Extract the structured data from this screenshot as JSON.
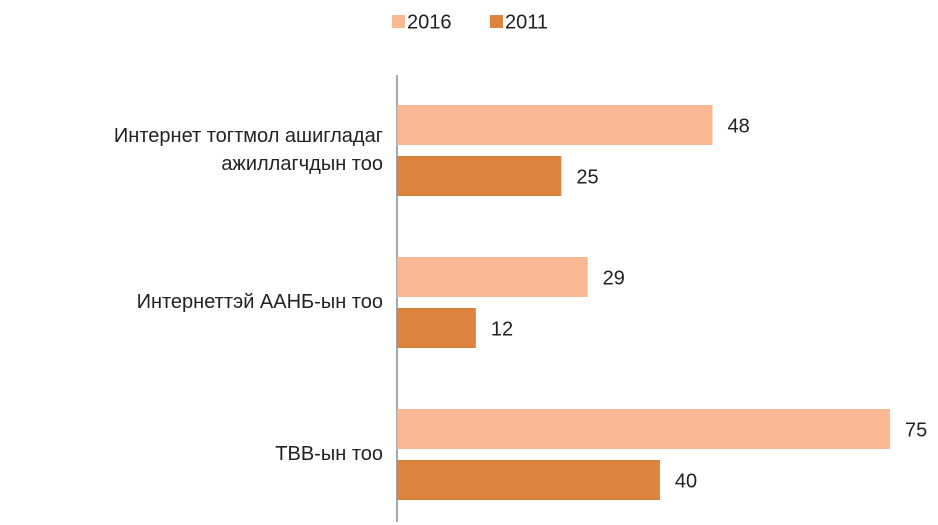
{
  "chart_data": {
    "type": "bar",
    "orientation": "horizontal",
    "categories": [
      "Интернет тогтмол ашигладаг ажиллагчдын тоо",
      "Интернеттэй ААНБ-ын тоо",
      "ТВВ-ын тоо"
    ],
    "series": [
      {
        "name": "2016",
        "color": "#f9b891",
        "values": [
          48,
          29,
          75
        ]
      },
      {
        "name": "2011",
        "color": "#dc843f",
        "values": [
          25,
          12,
          40
        ]
      }
    ],
    "legend": "top"
  }
}
